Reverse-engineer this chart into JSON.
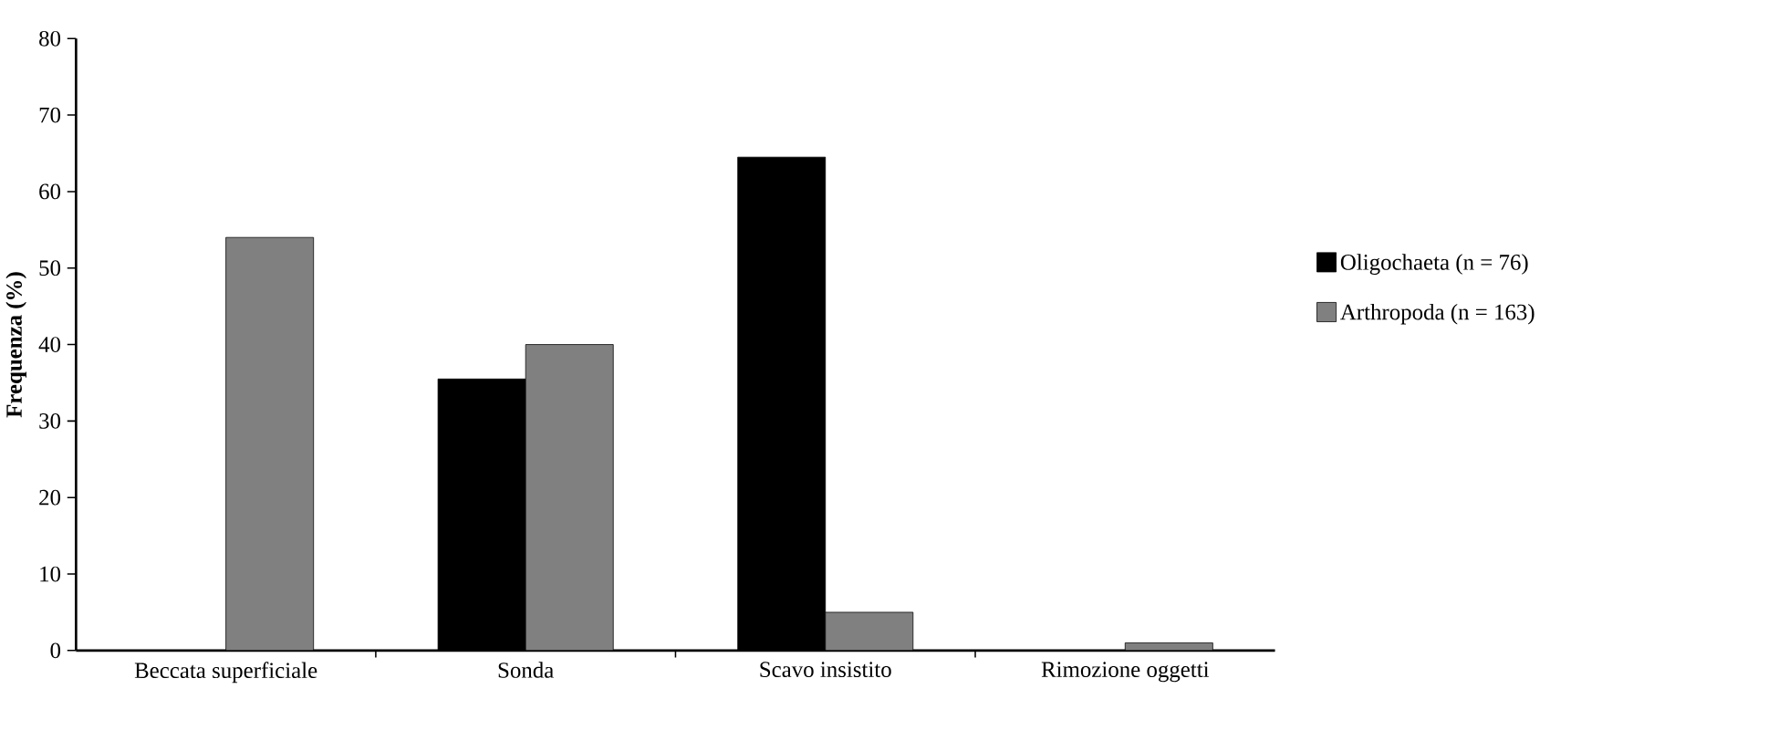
{
  "chart_data": {
    "type": "bar",
    "ylabel": "Frequenza (%)",
    "categories": [
      "Beccata superficiale",
      "Sonda",
      "Scavo insistito",
      "Rimozione oggetti"
    ],
    "series": [
      {
        "name": "Oligochaeta (n = 76)",
        "color": "#000000",
        "values": [
          0,
          35.5,
          64.5,
          0
        ]
      },
      {
        "name": "Arthropoda (n = 163)",
        "color": "#808080",
        "values": [
          54,
          40,
          5,
          1
        ]
      }
    ],
    "ylim": [
      0,
      80
    ],
    "yticks": [
      0,
      10,
      20,
      30,
      40,
      50,
      60,
      70,
      80
    ],
    "grid": false,
    "legend": "right"
  }
}
